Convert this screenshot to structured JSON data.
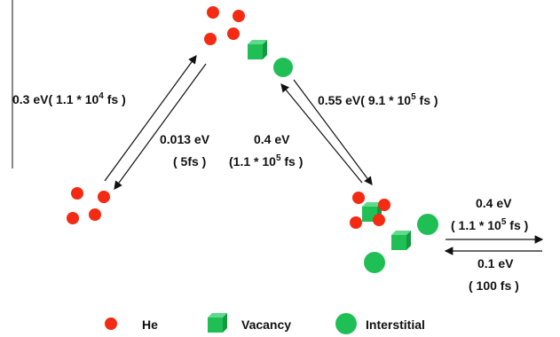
{
  "transitions": [
    {
      "lines": [
        [
          "0.3 eV( 1.1 * 10",
          "4",
          " fs )"
        ]
      ]
    },
    {
      "lines": [
        [
          "0.013 eV"
        ],
        [
          "( 5fs )"
        ]
      ]
    },
    {
      "lines": [
        [
          "0.4 eV"
        ],
        [
          "(1.1 * 10",
          "5",
          " fs )"
        ]
      ]
    },
    {
      "lines": [
        [
          "0.55 eV( 9.1 * 10",
          "5",
          " fs )"
        ]
      ]
    },
    {
      "lines": [
        [
          "0.4 eV"
        ],
        [
          "( 1.1 * 10",
          "5",
          " fs )"
        ]
      ]
    },
    {
      "lines": [
        [
          "0.1 eV"
        ],
        [
          "( 100 fs )"
        ]
      ]
    }
  ],
  "legend": [
    "He",
    "Vacancy",
    "Interstitial"
  ]
}
